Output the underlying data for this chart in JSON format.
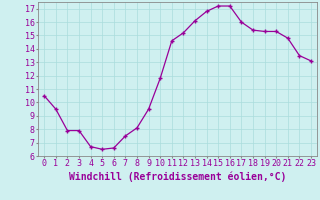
{
  "x": [
    0,
    1,
    2,
    3,
    4,
    5,
    6,
    7,
    8,
    9,
    10,
    11,
    12,
    13,
    14,
    15,
    16,
    17,
    18,
    19,
    20,
    21,
    22,
    23
  ],
  "y": [
    10.5,
    9.5,
    7.9,
    7.9,
    6.7,
    6.5,
    6.6,
    7.5,
    8.1,
    9.5,
    11.8,
    14.6,
    15.2,
    16.1,
    16.8,
    17.2,
    17.2,
    16.0,
    15.4,
    15.3,
    15.3,
    14.8,
    13.5,
    13.1
  ],
  "line_color": "#990099",
  "marker": "+",
  "xlabel": "Windchill (Refroidissement éolien,°C)",
  "xlim": [
    -0.5,
    23.5
  ],
  "ylim": [
    6,
    17.5
  ],
  "yticks": [
    6,
    7,
    8,
    9,
    10,
    11,
    12,
    13,
    14,
    15,
    16,
    17
  ],
  "xtick_labels": [
    "0",
    "1",
    "2",
    "3",
    "4",
    "5",
    "6",
    "7",
    "8",
    "9",
    "10",
    "11",
    "12",
    "13",
    "14",
    "15",
    "16",
    "17",
    "18",
    "19",
    "20",
    "21",
    "22",
    "23"
  ],
  "bg_color": "#cff0f0",
  "grid_color": "#aadddd",
  "tick_fontsize": 6,
  "xlabel_fontsize": 7
}
